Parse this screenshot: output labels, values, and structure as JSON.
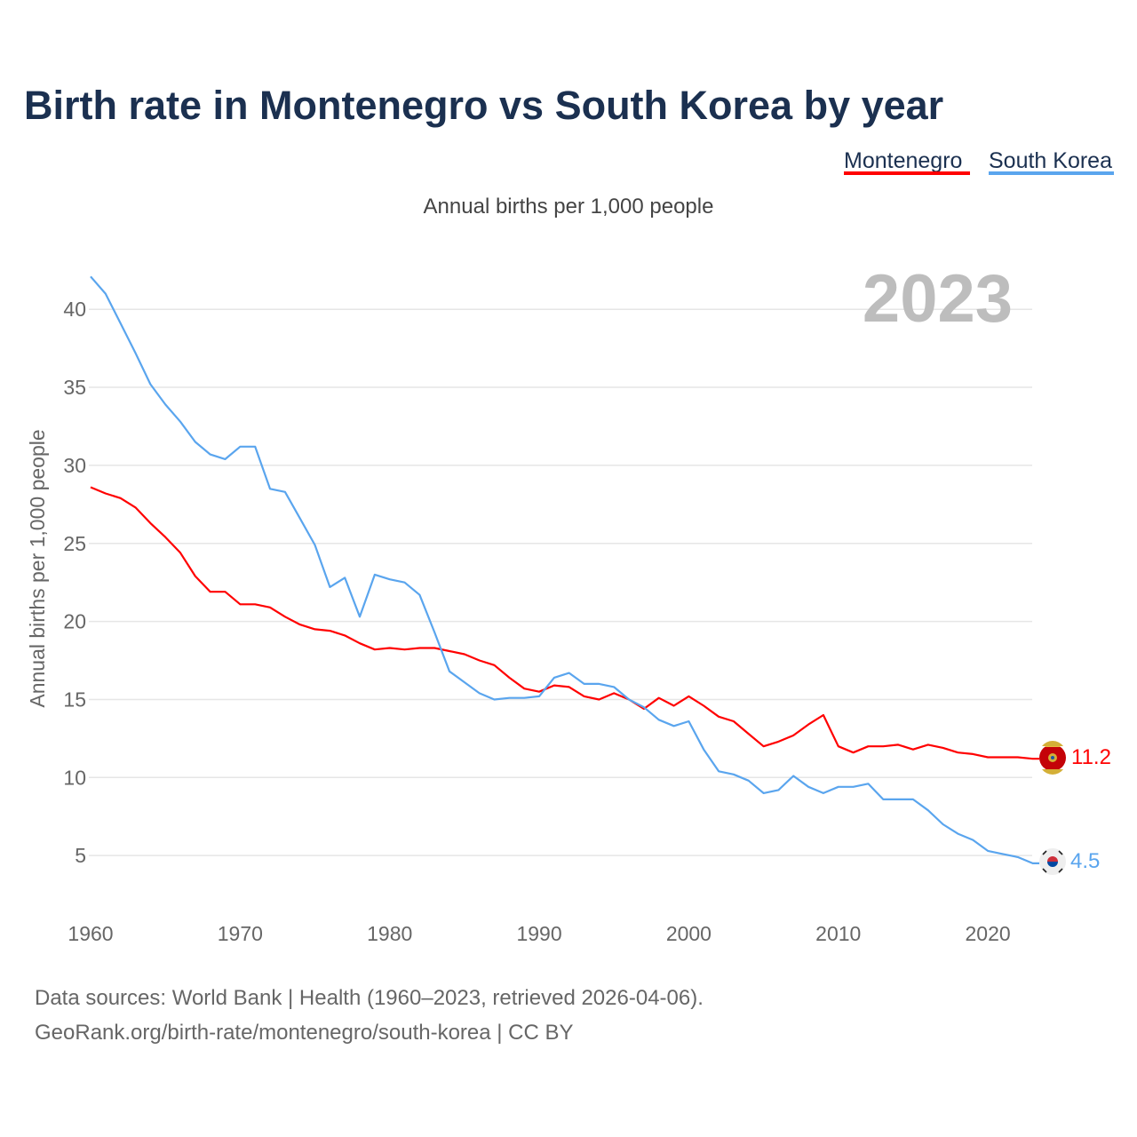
{
  "chart_data": {
    "type": "line",
    "title": "Birth rate in Montenegro vs South Korea by year",
    "subtitle": "Annual births per 1,000 people",
    "ylabel": "Annual births per 1,000 people",
    "xlabel": "",
    "current_year_label": "2023",
    "x_ticks": [
      1960,
      1970,
      1980,
      1990,
      2000,
      2010,
      2020
    ],
    "y_ticks": [
      5,
      10,
      15,
      20,
      25,
      30,
      35,
      40
    ],
    "xlim": [
      1960,
      2023
    ],
    "ylim": [
      0,
      43
    ],
    "grid": true,
    "legend_position": "top-right",
    "x": [
      1960,
      1961,
      1962,
      1963,
      1964,
      1965,
      1966,
      1967,
      1968,
      1969,
      1970,
      1971,
      1972,
      1973,
      1974,
      1975,
      1976,
      1977,
      1978,
      1979,
      1980,
      1981,
      1982,
      1983,
      1984,
      1985,
      1986,
      1987,
      1988,
      1989,
      1990,
      1991,
      1992,
      1993,
      1994,
      1995,
      1996,
      1997,
      1998,
      1999,
      2000,
      2001,
      2002,
      2003,
      2004,
      2005,
      2006,
      2007,
      2008,
      2009,
      2010,
      2011,
      2012,
      2013,
      2014,
      2015,
      2016,
      2017,
      2018,
      2019,
      2020,
      2021,
      2022,
      2023
    ],
    "series": [
      {
        "name": "Montenegro",
        "color": "#ff0000",
        "end_label": "11.2",
        "flag": "montenegro-flag",
        "values": [
          28.6,
          28.2,
          27.9,
          27.3,
          26.3,
          25.4,
          24.4,
          22.9,
          21.9,
          21.9,
          21.1,
          21.1,
          20.9,
          20.3,
          19.8,
          19.5,
          19.4,
          19.1,
          18.6,
          18.2,
          18.3,
          18.2,
          18.3,
          18.3,
          18.1,
          17.9,
          17.5,
          17.2,
          16.4,
          15.7,
          15.5,
          15.9,
          15.8,
          15.2,
          15.0,
          15.4,
          15.0,
          14.4,
          15.1,
          14.6,
          15.2,
          14.6,
          13.9,
          13.6,
          12.8,
          12.0,
          12.3,
          12.7,
          13.4,
          14.0,
          12.0,
          11.6,
          12.0,
          12.0,
          12.1,
          11.8,
          12.1,
          11.9,
          11.6,
          11.5,
          11.3,
          11.3,
          11.3,
          11.2
        ]
      },
      {
        "name": "South Korea",
        "color": "#5aa5ee",
        "end_label": "4.5",
        "flag": "south-korea-flag",
        "values": [
          42.1,
          41.0,
          39.1,
          37.2,
          35.2,
          33.9,
          32.8,
          31.5,
          30.7,
          30.4,
          31.2,
          31.2,
          28.5,
          28.3,
          26.6,
          24.9,
          22.2,
          22.8,
          20.3,
          23.0,
          22.7,
          22.5,
          21.7,
          19.3,
          16.8,
          16.1,
          15.4,
          15.0,
          15.1,
          15.1,
          15.2,
          16.4,
          16.7,
          16.0,
          16.0,
          15.8,
          15.0,
          14.5,
          13.7,
          13.3,
          13.6,
          11.8,
          10.4,
          10.2,
          9.8,
          9.0,
          9.2,
          10.1,
          9.4,
          9.0,
          9.4,
          9.4,
          9.6,
          8.6,
          8.6,
          8.6,
          7.9,
          7.0,
          6.4,
          6.0,
          5.3,
          5.1,
          4.9,
          4.5
        ]
      }
    ]
  },
  "footer": {
    "line1": "Data sources: World Bank | Health (1960–2023, retrieved 2026-04-06).",
    "line2": "GeoRank.org/birth-rate/montenegro/south-korea | CC BY"
  }
}
